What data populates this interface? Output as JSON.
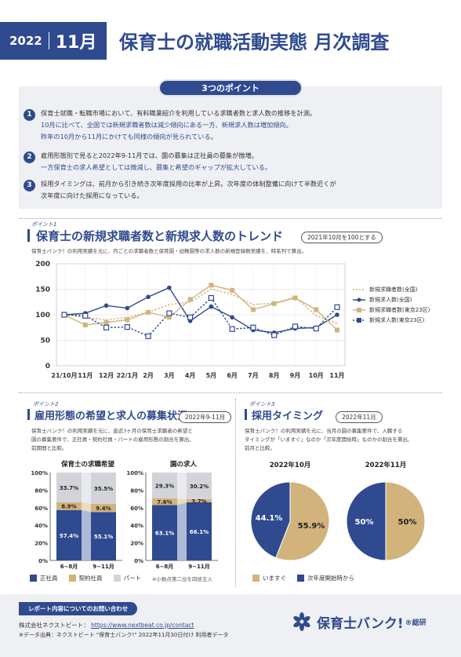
{
  "header": {
    "year": "2022",
    "month": "11月",
    "title": "保育士の就職活動実態 月次調査"
  },
  "points": {
    "pill": "3つのポイント",
    "items": [
      {
        "num": "1",
        "lines": [
          "保育士就職・転職市場において、有料職業紹介を利用している求職者数と求人数の推移を計測。",
          "10月に比べて、全国では新規求職者数は減少傾向にある一方、新規求人数は増加傾向。",
          "昨年の10月から11月にかけても同様の傾向が見られている。"
        ]
      },
      {
        "num": "2",
        "lines": [
          "雇用形態別で見ると2022年9-11月では、園の募集は正社員の募集が微増。",
          "一方保育士の求人希望としては微減し、募集と希望のギャップが拡大している。"
        ]
      },
      {
        "num": "3",
        "lines": [
          "採用タイミングは、前月から引き続き次年度採用の比率が上昇。次年度の体制整備に向けて半数近くが",
          "次年度に向けた採用になっている。"
        ]
      }
    ]
  },
  "section1": {
    "tag": "ポイント1",
    "title": "保育士の新規求職者数と新規求人数のトレンド",
    "badge": "2021年10月を100とする",
    "note": "保育士バンク！の利用実績を元に、月ごとの求職者数と保育園・幼稚園等の求人数の新規登録数実績を、時系列で算出。"
  },
  "section2": {
    "tag": "ポイント2",
    "title": "雇用形態の希望と求人の募集状況",
    "badge": "2022年9-11月",
    "note": [
      "保育士バンク！の利用実績を元に、直近3ヶ月の保育士求職者の希望と",
      "園の募集要件で、正社員・契約社員・パートの雇用形態の割合を算出、",
      "前期間と比較。"
    ],
    "legend": {
      "a": "正社員",
      "b": "契約社員",
      "c": "パート",
      "footnote": "※小数点第二位を四捨五入"
    }
  },
  "section3": {
    "tag": "ポイント3",
    "title": "採用タイミング",
    "badge": "2022年11月",
    "note": [
      "保育士バンク！の利用実績を元に、当月の園の募集要件で、入職する",
      "タイミングが「いますぐ」なのか「次年度開始時」なのかの割合を算出、",
      "前月と比較。"
    ],
    "legend": {
      "a": "いますぐ",
      "b": "次年度開始時から"
    }
  },
  "footer": {
    "pill": "レポート内容についてのお問い合わせ",
    "company": "株式会社ネクストビート：",
    "url": "https://www.nextbeat.co.jp/contact",
    "source": "※データ出典：ネクストビート \"保育士バンク!\" 2022年11月30日付け 利用者データ",
    "brand": "保育士バンク!",
    "brand_sub": "®総研"
  },
  "colors": {
    "navy": "#2f4a8f",
    "tan": "#d2b37c",
    "gray": "#d2d4d9"
  },
  "chart_data": [
    {
      "type": "line",
      "categories": [
        "21/10月",
        "11月",
        "12月",
        "22/1月",
        "2月",
        "3月",
        "4月",
        "5月",
        "6月",
        "7月",
        "8月",
        "9月",
        "10月",
        "11月"
      ],
      "ylim": [
        0,
        200
      ],
      "yticks": [
        0,
        50,
        100,
        150,
        200
      ],
      "series": [
        {
          "name": "新規求職者数(全国)",
          "color": "#d2b37c",
          "dash": true,
          "marker": "none",
          "values": [
            100,
            95,
            90,
            95,
            105,
            120,
            125,
            150,
            140,
            120,
            123,
            135,
            98,
            83
          ]
        },
        {
          "name": "新規求人数(全国)",
          "color": "#2f4a8f",
          "dash": false,
          "marker": "dot",
          "values": [
            100,
            103,
            118,
            113,
            135,
            153,
            88,
            116,
            95,
            70,
            65,
            73,
            75,
            100
          ]
        },
        {
          "name": "新規求職者数(東京23区)",
          "color": "#d2b37c",
          "dash": false,
          "marker": "square",
          "values": [
            100,
            80,
            85,
            90,
            105,
            95,
            130,
            158,
            148,
            110,
            122,
            133,
            110,
            70
          ]
        },
        {
          "name": "新規求人数(東京23区)",
          "color": "#2f4a8f",
          "dash": true,
          "marker": "square",
          "values": [
            100,
            98,
            75,
            76,
            58,
            103,
            95,
            133,
            72,
            75,
            60,
            77,
            73,
            115
          ]
        }
      ]
    },
    {
      "type": "bar",
      "stacked": true,
      "yticks": [
        "0%",
        "20%",
        "40%",
        "60%",
        "80%",
        "100%"
      ],
      "groups": [
        {
          "title": "保育士の求職希望",
          "categories": [
            "6~8月",
            "9~11月"
          ],
          "series": [
            {
              "name": "正社員",
              "values": [
                57.4,
                55.1
              ],
              "labels": [
                "57.4%",
                "55.1%"
              ]
            },
            {
              "name": "契約社員",
              "values": [
                8.9,
                9.4
              ],
              "labels": [
                "8.9%",
                "9.4%"
              ]
            },
            {
              "name": "パート",
              "values": [
                33.7,
                35.5
              ],
              "labels": [
                "33.7%",
                "35.5%"
              ]
            }
          ]
        },
        {
          "title": "園の求人",
          "categories": [
            "6~8月",
            "9~11月"
          ],
          "series": [
            {
              "name": "正社員",
              "values": [
                63.1,
                66.1
              ],
              "labels": [
                "63.1%",
                "66.1%"
              ]
            },
            {
              "name": "契約社員",
              "values": [
                7.6,
                3.7
              ],
              "labels": [
                "7.6%",
                "3.7%"
              ]
            },
            {
              "name": "パート",
              "values": [
                29.3,
                30.2
              ],
              "labels": [
                "29.3%",
                "30.2%"
              ]
            }
          ]
        }
      ]
    },
    {
      "type": "pie",
      "charts": [
        {
          "title": "2022年10月",
          "slices": [
            {
              "name": "いますぐ",
              "value": 55.9,
              "label": "55.9%"
            },
            {
              "name": "次年度開始時から",
              "value": 44.1,
              "label": "44.1%"
            }
          ]
        },
        {
          "title": "2022年11月",
          "slices": [
            {
              "name": "いますぐ",
              "value": 50,
              "label": "50%"
            },
            {
              "name": "次年度開始時から",
              "value": 50,
              "label": "50%"
            }
          ]
        }
      ]
    }
  ]
}
